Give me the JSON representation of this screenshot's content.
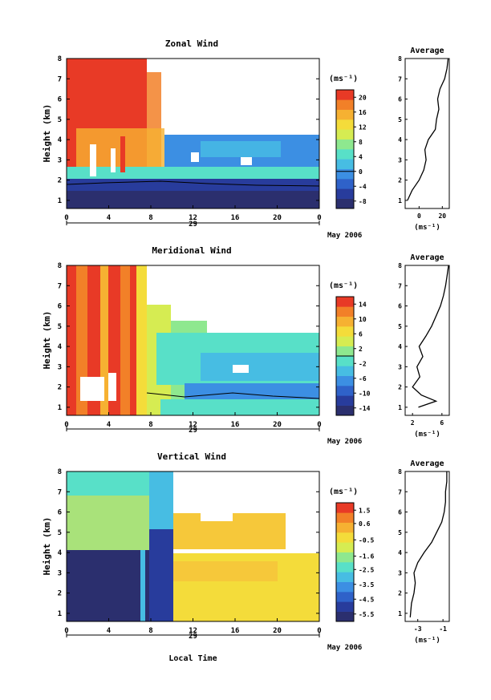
{
  "figure": {
    "panels": [
      {
        "title": "Zonal Wind",
        "ylabel": "Height (km)",
        "unit_label": "(ms⁻¹)",
        "colorbar_ticks": [
          "20",
          "16",
          "12",
          "8",
          "4",
          "0",
          "-4",
          "-8"
        ],
        "profile_title": "Average",
        "profile_xticks": [
          "0",
          "20"
        ],
        "profile_unit": "(ms⁻¹)"
      },
      {
        "title": "Meridional Wind",
        "ylabel": "Height (km)",
        "unit_label": "(ms⁻¹)",
        "colorbar_ticks": [
          "14",
          "10",
          "6",
          "2",
          "-2",
          "-6",
          "-10",
          "-14"
        ],
        "profile_title": "Average",
        "profile_xticks": [
          "2",
          "6"
        ],
        "profile_unit": "(ms⁻¹)"
      },
      {
        "title": "Vertical Wind",
        "ylabel": "Height (km)",
        "unit_label": "(ms⁻¹)",
        "colorbar_ticks": [
          "1.5",
          "0.6",
          "-0.5",
          "-1.6",
          "-2.5",
          "-3.5",
          "-4.5",
          "-5.5"
        ],
        "profile_title": "Average",
        "profile_xticks": [
          "-3",
          "-1"
        ],
        "profile_unit": "(ms⁻¹)"
      }
    ],
    "xticks": [
      "0",
      "4",
      "8",
      "12",
      "16",
      "20",
      "0"
    ],
    "yticks": [
      "1",
      "2",
      "3",
      "4",
      "5",
      "6",
      "7",
      "8"
    ],
    "date_day": "29",
    "date_label": "May 2006",
    "xlabel": "Local Time"
  },
  "colors": {
    "scale": [
      "#2b2f6e",
      "#283c9c",
      "#2f62c9",
      "#3c8fe3",
      "#47bde3",
      "#58e0c8",
      "#8ee88f",
      "#d6ec52",
      "#f4dc3a",
      "#f6b132",
      "#f28028",
      "#e83a26"
    ]
  },
  "chart_data": [
    {
      "type": "heatmap",
      "title": "Zonal Wind",
      "xlabel": "",
      "ylabel": "Height (km)",
      "x_range": [
        0,
        24
      ],
      "y_range": [
        0.6,
        8
      ],
      "xticks": [
        0,
        4,
        8,
        12,
        16,
        20,
        24
      ],
      "yticks": [
        1,
        2,
        3,
        4,
        5,
        6,
        7,
        8
      ],
      "colorbar": {
        "unit": "(ms⁻¹)",
        "min": -10,
        "max": 22,
        "ticks": [
          20,
          16,
          12,
          8,
          4,
          0,
          -4,
          -8
        ]
      },
      "field_description_values": {
        "low_level_below_2km_ms": -8,
        "upper_level_0_to_8h_ms": 20,
        "upper_level_after_10h_ms": 3
      },
      "profile": {
        "title": "Average",
        "xlim": [
          -12,
          26
        ],
        "xticks": [
          0,
          20
        ],
        "heights_km": [
          1.0,
          1.5,
          2.0,
          2.5,
          3.0,
          3.5,
          4.0,
          4.5,
          5.0,
          5.5,
          6.0,
          6.5,
          7.0,
          7.5,
          8.0
        ],
        "values": [
          -10,
          -6,
          0,
          4,
          6,
          5,
          8,
          14,
          15,
          17,
          16,
          18,
          22,
          24,
          25
        ]
      }
    },
    {
      "type": "heatmap",
      "title": "Meridional Wind",
      "xlabel": "",
      "ylabel": "Height (km)",
      "x_range": [
        0,
        24
      ],
      "y_range": [
        0.6,
        8
      ],
      "xticks": [
        0,
        4,
        8,
        12,
        16,
        20,
        24
      ],
      "yticks": [
        1,
        2,
        3,
        4,
        5,
        6,
        7,
        8
      ],
      "colorbar": {
        "unit": "(ms⁻¹)",
        "min": -16,
        "max": 16,
        "ticks": [
          14,
          10,
          6,
          2,
          -2,
          -6,
          -10,
          -14
        ]
      },
      "field_description_values": {
        "early_hours_0_to_8h_ms": 12,
        "after_10h_ms": -3
      },
      "profile": {
        "title": "Average",
        "xlim": [
          1,
          7
        ],
        "xticks": [
          2,
          6
        ],
        "heights_km": [
          1.0,
          1.3,
          1.6,
          2.0,
          2.5,
          3.0,
          3.5,
          4.0,
          4.5,
          5.0,
          5.5,
          6.0,
          6.5,
          7.0,
          7.5,
          8.0
        ],
        "values": [
          2.8,
          5.2,
          3.2,
          2.0,
          3.0,
          2.6,
          3.4,
          2.9,
          3.8,
          4.6,
          5.2,
          5.8,
          6.2,
          6.5,
          6.7,
          6.9
        ]
      }
    },
    {
      "type": "heatmap",
      "title": "Vertical Wind",
      "xlabel": "Local Time",
      "ylabel": "Height (km)",
      "x_range": [
        0,
        24
      ],
      "y_range": [
        0.6,
        8
      ],
      "xticks": [
        0,
        4,
        8,
        12,
        16,
        20,
        24
      ],
      "yticks": [
        1,
        2,
        3,
        4,
        5,
        6,
        7,
        8
      ],
      "colorbar": {
        "unit": "(ms⁻¹)",
        "min": -6,
        "max": 2,
        "ticks": [
          1.5,
          0.6,
          -0.5,
          -1.6,
          -2.5,
          -3.5,
          -4.5,
          -5.5
        ]
      },
      "field_description_values": {
        "below_4km_0_to_8h_ms": -5.5,
        "above_4km_0_to_8h_ms": -0.5,
        "after_9h_ms": 0.3
      },
      "profile": {
        "title": "Average",
        "xlim": [
          -4,
          -0.5
        ],
        "xticks": [
          -3,
          -1
        ],
        "heights_km": [
          0.8,
          1.5,
          2.0,
          2.5,
          3.0,
          3.5,
          4.0,
          4.5,
          5.0,
          5.5,
          6.0,
          6.5,
          7.0,
          7.5,
          8.0
        ],
        "values": [
          -3.6,
          -3.5,
          -3.3,
          -3.2,
          -3.3,
          -3.0,
          -2.5,
          -1.9,
          -1.5,
          -1.1,
          -0.9,
          -0.8,
          -0.8,
          -0.7,
          -0.7
        ]
      }
    }
  ]
}
